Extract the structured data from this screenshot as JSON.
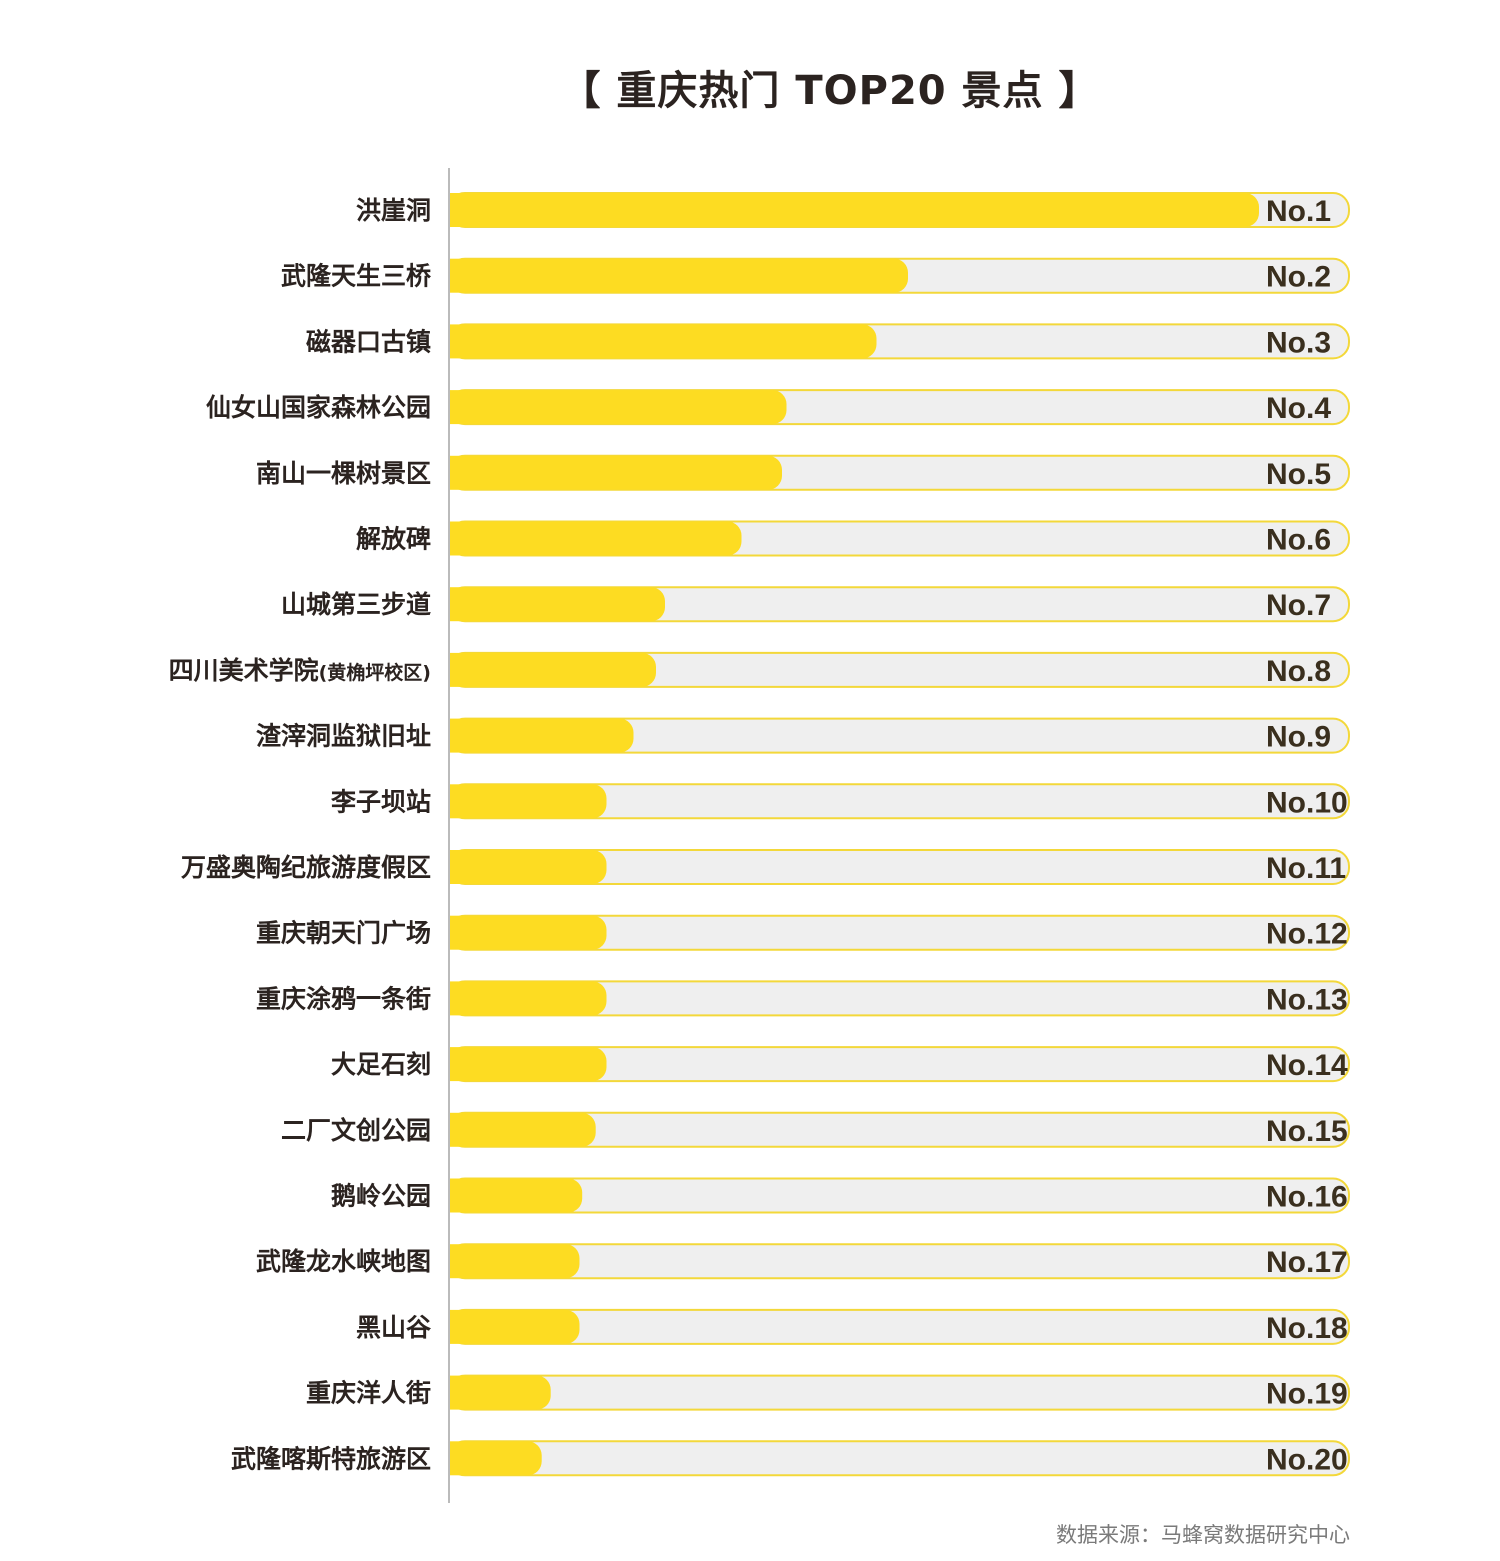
{
  "chart_data": {
    "type": "bar",
    "orientation": "horizontal",
    "title": "【 重庆热门 TOP20 景点 】",
    "categories": [
      {
        "name": "洪崖洞",
        "note": ""
      },
      {
        "name": "武隆天生三桥",
        "note": ""
      },
      {
        "name": "磁器口古镇",
        "note": ""
      },
      {
        "name": "仙女山国家森林公园",
        "note": ""
      },
      {
        "name": "南山一棵树景区",
        "note": ""
      },
      {
        "name": "解放碑",
        "note": ""
      },
      {
        "name": "山城第三步道",
        "note": ""
      },
      {
        "name": "四川美术学院",
        "note": "(黄桷坪校区)"
      },
      {
        "name": "渣滓洞监狱旧址",
        "note": ""
      },
      {
        "name": "李子坝站",
        "note": ""
      },
      {
        "name": "万盛奥陶纪旅游度假区",
        "note": ""
      },
      {
        "name": "重庆朝天门广场",
        "note": ""
      },
      {
        "name": "重庆涂鸦一条街",
        "note": ""
      },
      {
        "name": "大足石刻",
        "note": ""
      },
      {
        "name": "二厂文创公园",
        "note": ""
      },
      {
        "name": "鹅岭公园",
        "note": ""
      },
      {
        "name": "武隆龙水峡地图",
        "note": ""
      },
      {
        "name": "黑山谷",
        "note": ""
      },
      {
        "name": "重庆洋人街",
        "note": ""
      },
      {
        "name": "武隆喀斯特旅游区",
        "note": ""
      }
    ],
    "ranks": [
      "No.1",
      "No.2",
      "No.3",
      "No.4",
      "No.5",
      "No.6",
      "No.7",
      "No.8",
      "No.9",
      "No.10",
      "No.11",
      "No.12",
      "No.13",
      "No.14",
      "No.15",
      "No.16",
      "No.17",
      "No.18",
      "No.19",
      "No.20"
    ],
    "values": [
      90,
      51,
      47.5,
      37.5,
      37,
      32.5,
      24,
      23,
      20.5,
      17.5,
      17.5,
      17.5,
      17.5,
      17.5,
      16.3,
      14.8,
      14.5,
      14.5,
      11.3,
      10.3
    ],
    "xlim": [
      0,
      100
    ],
    "grid": false,
    "legend": "none",
    "colors": {
      "bar": "#FDDC22",
      "track": "#EFEFEF",
      "track_border": "#F3D83A",
      "axis": "#BBBBBB",
      "text": "#2B2320"
    }
  },
  "source": "数据来源：马蜂窝数据研究中心"
}
